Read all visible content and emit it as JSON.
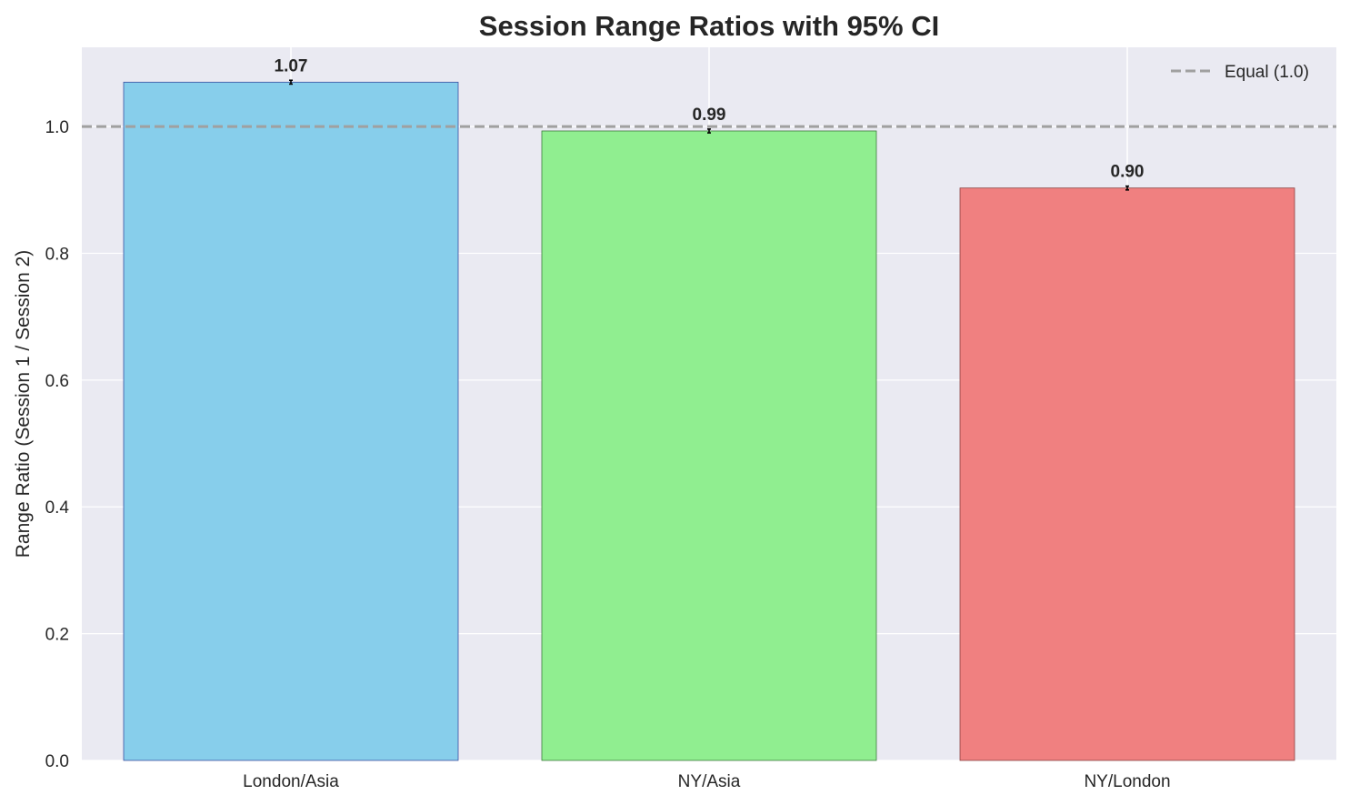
{
  "chart_data": {
    "type": "bar",
    "title": "Session Range Ratios with 95% CI",
    "xlabel": "",
    "ylabel": "Range Ratio (Session 1 / Session 2)",
    "categories": [
      "London/Asia",
      "NY/Asia",
      "NY/London"
    ],
    "values": [
      1.07,
      0.993,
      0.903
    ],
    "data_labels": [
      "1.07",
      "0.99",
      "0.90"
    ],
    "ci_half_width": [
      0.003,
      0.003,
      0.003
    ],
    "bar_colors": [
      "#87CEEB",
      "#90EE90",
      "#F08080"
    ],
    "bar_edge_colors": [
      "#3a4fa0",
      "#3d7a3d",
      "#8a4040"
    ],
    "ylim": [
      0,
      1.125
    ],
    "yticks": [
      0.0,
      0.2,
      0.4,
      0.6,
      0.8,
      1.0
    ],
    "ytick_labels": [
      "0.0",
      "0.2",
      "0.4",
      "0.6",
      "0.8",
      "1.0"
    ],
    "reference_line": {
      "y": 1.0,
      "label": "Equal (1.0)",
      "color": "#a0a0a0",
      "style": "dashed"
    },
    "legend": {
      "placement": "top-right",
      "entries": [
        "Equal (1.0)"
      ]
    },
    "grid": true,
    "background_color": "#EAEAF2",
    "grid_color": "#ffffff"
  }
}
